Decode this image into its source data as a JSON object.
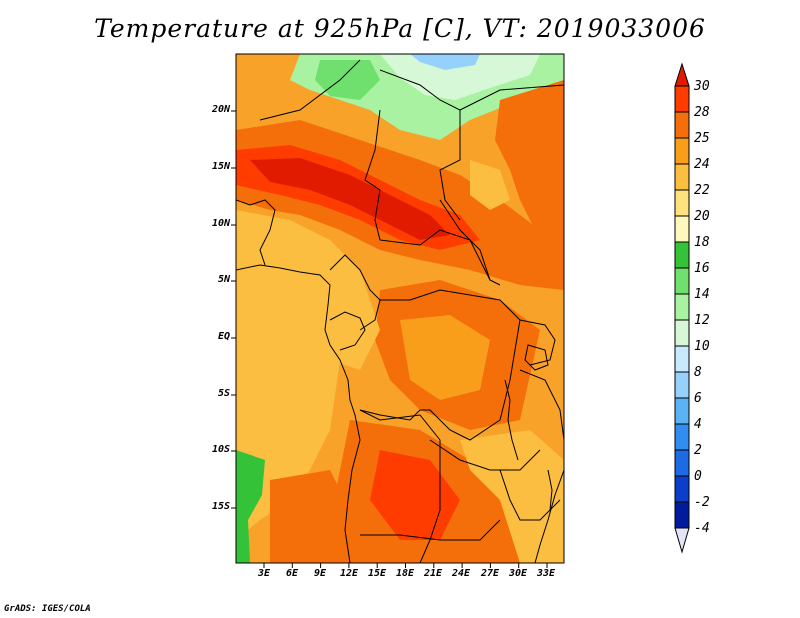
{
  "title": "Temperature at 925hPa [C], VT: 2019033006",
  "footer": "GrADS: IGES/COLA",
  "map": {
    "lat_labels": [
      "20N",
      "15N",
      "10N",
      "5N",
      "EQ",
      "5S",
      "10S",
      "15S"
    ],
    "lon_labels": [
      "3E",
      "6E",
      "9E",
      "12E",
      "15E",
      "18E",
      "21E",
      "24E",
      "27E",
      "30E",
      "33E"
    ]
  },
  "colorbar": {
    "levels": [
      "30",
      "28",
      "25",
      "24",
      "22",
      "20",
      "18",
      "16",
      "14",
      "12",
      "10",
      "8",
      "6",
      "4",
      "2",
      "0",
      "-2",
      "-4"
    ],
    "colors": [
      "#e11b00",
      "#ff3c00",
      "#f46e0a",
      "#f99e1a",
      "#fbbe41",
      "#fde37c",
      "#fff8bd",
      "#33c238",
      "#6fe06d",
      "#a8f2a2",
      "#d6f8d6",
      "#c9e9ff",
      "#96d1fb",
      "#5bb3f6",
      "#2f8ef0",
      "#1c6ae4",
      "#0c3ecc",
      "#001b9b",
      "#000c55",
      "#e4e4f8"
    ]
  },
  "colors": {
    "ocean": "#fdbf45",
    "sahara_green": "#5fd15f",
    "coast": "#000000"
  }
}
